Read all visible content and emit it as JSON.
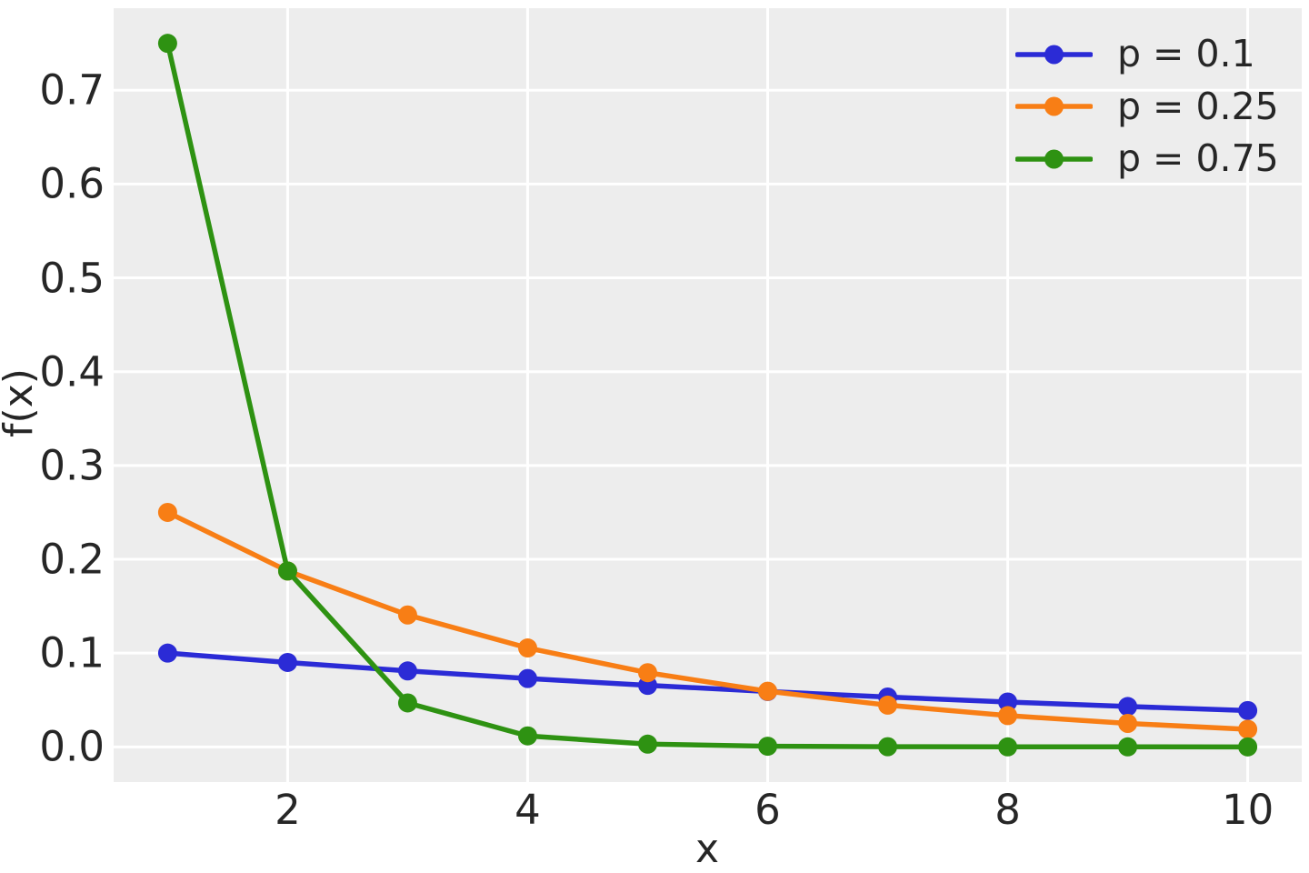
{
  "figure": {
    "background": "#ffffff",
    "plot_background": "#ededed",
    "grid_color": "#ffffff",
    "text_color": "#262626"
  },
  "chart_data": {
    "type": "line",
    "title": "",
    "xlabel": "x",
    "ylabel": "f(x)",
    "x": [
      1,
      2,
      3,
      4,
      5,
      6,
      7,
      8,
      9,
      10
    ],
    "series": [
      {
        "name": "p = 0.1",
        "color": "#2b2bd6",
        "marker": "circle",
        "values": [
          0.1,
          0.09,
          0.081,
          0.0729,
          0.06561,
          0.059049,
          0.0531441,
          0.0478297,
          0.0430467,
          0.038742
        ]
      },
      {
        "name": "p = 0.25",
        "color": "#f87e15",
        "marker": "circle",
        "values": [
          0.25,
          0.1875,
          0.140625,
          0.1054688,
          0.0791016,
          0.0593262,
          0.0444946,
          0.033371,
          0.0250282,
          0.0187712
        ]
      },
      {
        "name": "p = 0.75",
        "color": "#2e9212",
        "marker": "circle",
        "values": [
          0.75,
          0.1875,
          0.046875,
          0.0117188,
          0.0029297,
          0.0007324,
          0.0001831,
          4.58e-05,
          1.14e-05,
          2.9e-06
        ]
      }
    ],
    "xlim": [
      0.55,
      10.45
    ],
    "ylim": [
      -0.0375,
      0.7875
    ],
    "xticks": {
      "values": [
        2,
        4,
        6,
        8,
        10
      ],
      "labels": [
        "2",
        "4",
        "6",
        "8",
        "10"
      ]
    },
    "yticks": {
      "values": [
        0.0,
        0.1,
        0.2,
        0.3,
        0.4,
        0.5,
        0.6,
        0.7
      ],
      "labels": [
        "0.0",
        "0.1",
        "0.2",
        "0.3",
        "0.4",
        "0.5",
        "0.6",
        "0.7"
      ]
    },
    "grid": true,
    "legend": {
      "location": "upper right",
      "frame": false
    }
  }
}
